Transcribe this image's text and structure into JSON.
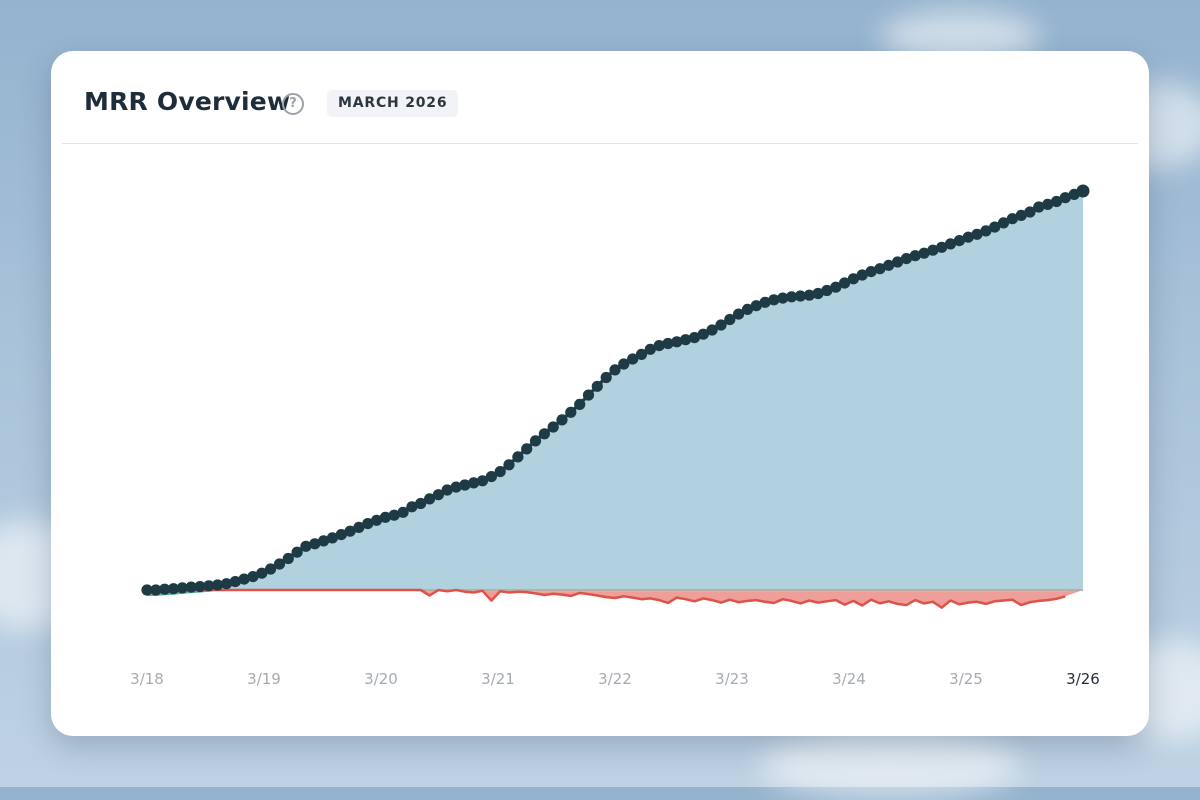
{
  "header": {
    "title": "MRR Overview",
    "badge": "MARCH 2026",
    "help_icon": "question-circle-icon"
  },
  "colors": {
    "mrr_area": "#b1d1df",
    "mrr_line": "#1e3a44",
    "growth_band": "#4ba898",
    "churn_area": "#ef9f9a",
    "churn_line": "#de5248",
    "contraction_area": "#f2c77c",
    "zero_line": "#b3a6a4"
  },
  "chart_data": {
    "type": "area",
    "x_start": "3/18",
    "x_end": "3/26",
    "xticks": [
      "3/18",
      "3/19",
      "3/20",
      "3/21",
      "3/22",
      "3/23",
      "3/24",
      "3/25",
      "3/26"
    ],
    "current_tick": "3/26",
    "ylim": [
      -25,
      100
    ],
    "grid": false,
    "legend": "none",
    "series": [
      {
        "values": [
          0,
          0,
          0.2,
          0.3,
          0.5,
          0.7,
          0.8,
          1,
          1.2,
          1.5,
          2,
          2.6,
          3.2,
          4,
          5,
          6.2,
          7.5,
          9,
          10.4,
          11,
          11.7,
          12.4,
          13.2,
          14,
          14.9,
          15.8,
          16.6,
          17.3,
          17.8,
          18.5,
          19.8,
          20.6,
          21.7,
          22.7,
          23.8,
          24.5,
          25,
          25.5,
          26,
          27,
          28.2,
          29.8,
          31.7,
          33.6,
          35.5,
          37.2,
          38.8,
          40.5,
          42.3,
          44.2,
          46.4,
          48.5,
          50.6,
          52.4,
          53.8,
          55,
          56.1,
          57.3,
          58.2,
          58.7,
          59.1,
          59.6,
          60.1,
          60.9,
          61.9,
          63.1,
          64.4,
          65.7,
          66.8,
          67.7,
          68.5,
          69.1,
          69.5,
          69.8,
          70,
          70.2,
          70.6,
          71.3,
          72.1,
          73.1,
          74.1,
          75,
          75.8,
          76.5,
          77.3,
          78.1,
          78.9,
          79.6,
          80.2,
          80.9,
          81.6,
          82.4,
          83.2,
          84,
          84.7,
          85.5,
          86.4,
          87.4,
          88.4,
          89.2,
          90,
          91.2,
          91.8,
          92.5,
          93.4,
          94.2,
          95
        ]
      },
      {
        "values": [
          0,
          0,
          0,
          0,
          0,
          0,
          0,
          0,
          0,
          0,
          0,
          0,
          0,
          0,
          0,
          0,
          0,
          0,
          0,
          0,
          0,
          0,
          0,
          0,
          0,
          0,
          0,
          0,
          0,
          0,
          0,
          0,
          -1.3,
          0,
          -0.3,
          0,
          -0.4,
          -0.6,
          -0.2,
          -2.5,
          -0.3,
          -0.6,
          -0.4,
          -0.5,
          -0.8,
          -1.2,
          -0.9,
          -1.1,
          -1.4,
          -0.7,
          -1,
          -1.3,
          -1.7,
          -1.9,
          -1.5,
          -1.8,
          -2.2,
          -2,
          -2.4,
          -3.1,
          -1.8,
          -2.2,
          -2.7,
          -2,
          -2.4,
          -3,
          -2.3,
          -2.9,
          -2.6,
          -2.4,
          -2.8,
          -3.1,
          -2.2,
          -2.6,
          -3.2,
          -2.5,
          -3,
          -2.7,
          -2.4,
          -3.5,
          -2.6,
          -3.7,
          -2.3,
          -3.2,
          -2.7,
          -3.3,
          -3.6,
          -2.4,
          -3.2,
          -2.8,
          -4.2,
          -2.5,
          -3.4,
          -3,
          -2.8,
          -3.3,
          -2.7,
          -2.5,
          -2.3,
          -3.6,
          -2.9,
          -2.6,
          -2.4,
          -2.1,
          -1.5
        ]
      }
    ]
  }
}
